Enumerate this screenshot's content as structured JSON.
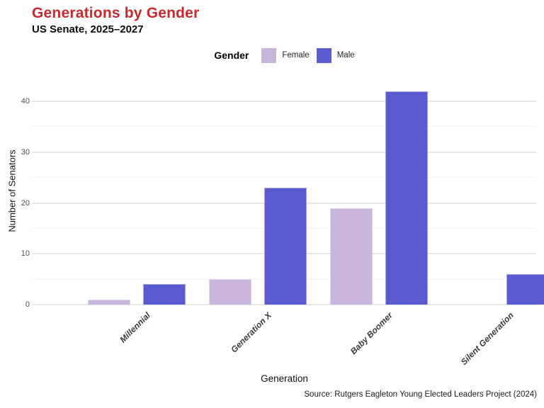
{
  "header": {
    "title": "Generations by Gender",
    "subtitle": "US Senate, 2025–2027"
  },
  "caption": "Source: Rutgers Eagleton Young Elected Leaders Project (2024)",
  "legend": {
    "title": "Gender",
    "items": [
      {
        "label": "Female",
        "color": "#c9b4dc"
      },
      {
        "label": "Male",
        "color": "#5a5bce"
      }
    ]
  },
  "appearance": {
    "title_color": "#c6292e",
    "female_color": "#c9b4dc",
    "male_color": "#5a5bce",
    "major_grid_color": "#e7e7e7",
    "minor_grid_color": "#f1f1f1",
    "background": "#ffffff"
  },
  "chart_data": {
    "type": "bar",
    "title": "Generations by Gender",
    "subtitle": "US Senate, 2025–2027",
    "caption": "Source: Rutgers Eagleton Young Elected Leaders Project (2024)",
    "categories": [
      "Millennial",
      "Generation X",
      "Baby Boomer",
      "Silent Generation"
    ],
    "series": [
      {
        "name": "Female",
        "color": "#c9b4dc",
        "values": [
          1,
          5,
          19,
          0
        ]
      },
      {
        "name": "Male",
        "color": "#5a5bce",
        "values": [
          4,
          23,
          42,
          6
        ]
      }
    ],
    "xlabel": "Generation",
    "ylabel": "Number of Senators",
    "ylim": [
      0,
      44
    ],
    "yticks": [
      0,
      10,
      20,
      30,
      40
    ],
    "yticks_minor": [
      5,
      15,
      25,
      35
    ],
    "grid": "horizontal-only",
    "legend_position": "top-center",
    "bar_orientation": "vertical-grouped"
  }
}
